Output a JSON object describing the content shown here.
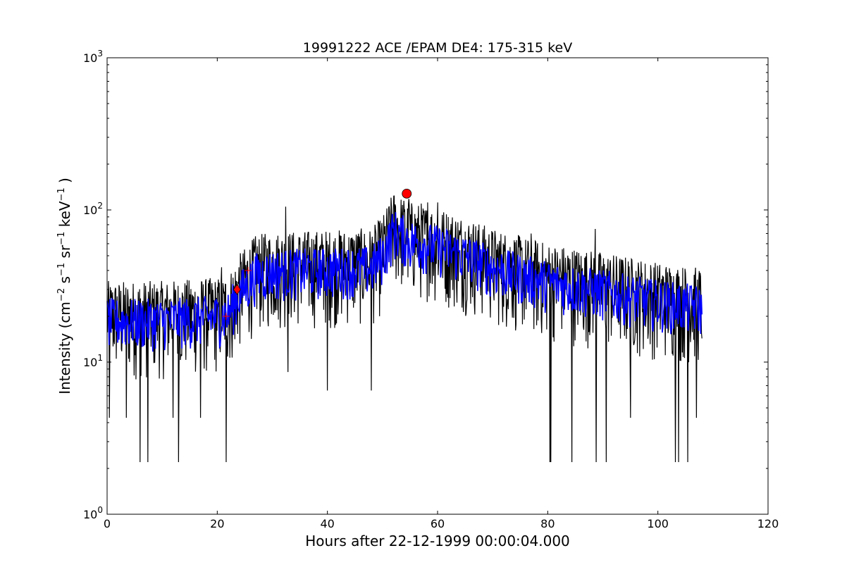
{
  "chart_data": {
    "type": "line",
    "title": "19991222 ACE /EPAM DE4: 175-315 keV",
    "xlabel": "Hours after 22-12-1999 00:00:04.000",
    "ylabel": {
      "base": "Intensity (cm",
      "parts": [
        {
          "text": "−2",
          "sup": true
        },
        {
          "text": " s",
          "sup": false
        },
        {
          "text": "−1",
          "sup": true
        },
        {
          "text": " sr",
          "sup": false
        },
        {
          "text": "−1",
          "sup": true
        },
        {
          "text": " keV",
          "sup": false
        },
        {
          "text": "−1",
          "sup": true
        },
        {
          "text": " )",
          "sup": false
        }
      ]
    },
    "xlim": [
      0,
      120
    ],
    "ylim": [
      1,
      1000
    ],
    "yscale": "log",
    "grid": false,
    "x_ticks": [
      0,
      20,
      40,
      60,
      80,
      100,
      120
    ],
    "x_tick_labels": [
      "0",
      "20",
      "40",
      "60",
      "80",
      "100",
      "120"
    ],
    "y_ticks": [
      1,
      10,
      100,
      1000
    ],
    "y_tick_labels": [
      {
        "base": "10",
        "exp": "0"
      },
      {
        "base": "10",
        "exp": "1"
      },
      {
        "base": "10",
        "exp": "2"
      },
      {
        "base": "10",
        "exp": "3"
      }
    ],
    "series": [
      {
        "style": "raw",
        "color": "#000000",
        "x_range": [
          0,
          108
        ],
        "n_points": 1300,
        "profile": [
          {
            "x": 0,
            "y": 18
          },
          {
            "x": 10,
            "y": 18
          },
          {
            "x": 20,
            "y": 19
          },
          {
            "x": 22,
            "y": 20
          },
          {
            "x": 24,
            "y": 27
          },
          {
            "x": 27,
            "y": 36
          },
          {
            "x": 30,
            "y": 38
          },
          {
            "x": 40,
            "y": 39
          },
          {
            "x": 48,
            "y": 40
          },
          {
            "x": 50,
            "y": 48
          },
          {
            "x": 52,
            "y": 70
          },
          {
            "x": 55,
            "y": 60
          },
          {
            "x": 60,
            "y": 55
          },
          {
            "x": 65,
            "y": 48
          },
          {
            "x": 70,
            "y": 40
          },
          {
            "x": 80,
            "y": 32
          },
          {
            "x": 90,
            "y": 28
          },
          {
            "x": 100,
            "y": 24
          },
          {
            "x": 108,
            "y": 22
          }
        ],
        "spread_low": 0.42,
        "spread_high": 1.9,
        "drops": [
          {
            "x": 6.0,
            "y": 2.2
          },
          {
            "x": 7.4,
            "y": 2.2
          },
          {
            "x": 13.0,
            "y": 2.2
          },
          {
            "x": 21.6,
            "y": 2.2
          },
          {
            "x": 80.4,
            "y": 2.2
          },
          {
            "x": 80.6,
            "y": 2.2
          },
          {
            "x": 84.4,
            "y": 2.2
          },
          {
            "x": 88.8,
            "y": 2.2
          },
          {
            "x": 90.6,
            "y": 2.2
          },
          {
            "x": 103.2,
            "y": 2.2
          },
          {
            "x": 103.8,
            "y": 2.2
          },
          {
            "x": 105.4,
            "y": 2.2
          },
          {
            "x": 0.4,
            "y": 4.3
          },
          {
            "x": 3.5,
            "y": 4.3
          },
          {
            "x": 12.0,
            "y": 4.3
          },
          {
            "x": 17.0,
            "y": 4.3
          },
          {
            "x": 95.0,
            "y": 4.3
          },
          {
            "x": 107.0,
            "y": 4.3
          },
          {
            "x": 32.8,
            "y": 8.6
          },
          {
            "x": 40.0,
            "y": 6.5
          },
          {
            "x": 48.0,
            "y": 6.5
          }
        ],
        "spikes": [
          {
            "x": 32.4,
            "y": 105
          },
          {
            "x": 51.6,
            "y": 105
          },
          {
            "x": 54.8,
            "y": 118
          },
          {
            "x": 57.0,
            "y": 110
          },
          {
            "x": 58.2,
            "y": 112
          },
          {
            "x": 60.0,
            "y": 112
          },
          {
            "x": 88.6,
            "y": 75
          },
          {
            "x": 77.0,
            "y": 70
          },
          {
            "x": 20.8,
            "y": 42
          }
        ]
      },
      {
        "style": "smoothed",
        "color": "#0000ff",
        "x_range": [
          0,
          108
        ],
        "n_points": 900,
        "spread_low": 0.65,
        "spread_high": 1.45
      }
    ],
    "markers": [
      {
        "x": 21.6,
        "y": 20,
        "shape": "plus",
        "color": "#ff0000"
      },
      {
        "x": 25.6,
        "y": 40,
        "shape": "plus",
        "color": "#ff0000"
      },
      {
        "x": 23.6,
        "y": 30,
        "shape": "diamond",
        "color": "#ff0000"
      },
      {
        "x": 54.4,
        "y": 128,
        "shape": "circle",
        "color": "#ff0000"
      }
    ]
  }
}
